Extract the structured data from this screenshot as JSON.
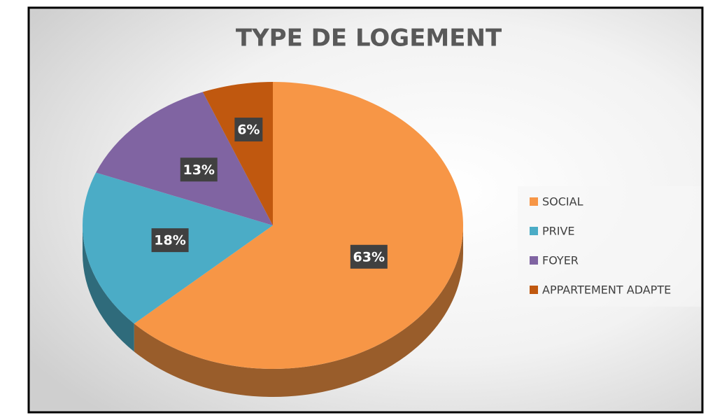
{
  "chart_data": {
    "type": "pie",
    "title": "TYPE DE LOGEMENT",
    "categories": [
      "SOCIAL",
      "PRIVE",
      "FOYER",
      "APPARTEMENT ADAPTE"
    ],
    "values": [
      63,
      18,
      13,
      6
    ],
    "value_labels": [
      "63%",
      "18%",
      "13%",
      "6%"
    ],
    "colors": [
      "#f79646",
      "#4bacc6",
      "#8064a2",
      "#c0580f"
    ],
    "legend": "right"
  }
}
